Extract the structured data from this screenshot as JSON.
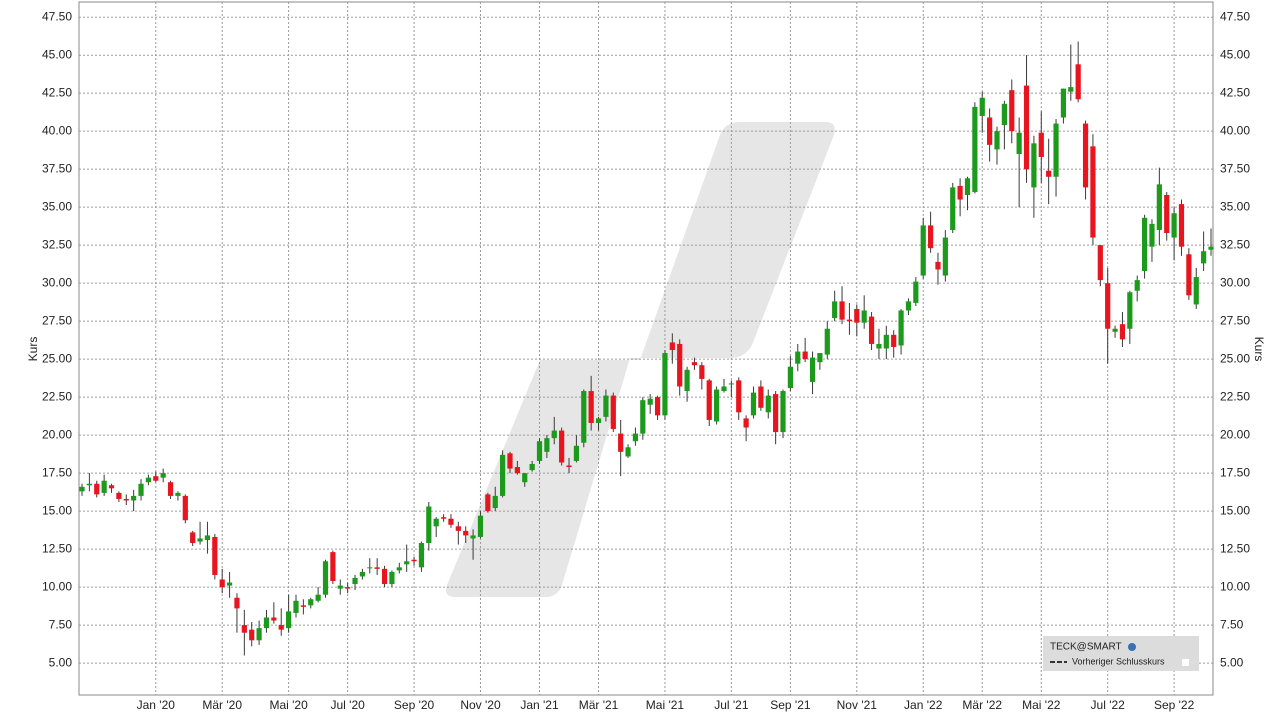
{
  "chart_data": {
    "type": "candlestick",
    "ylabel": "Kurs",
    "y2label": "Kurs",
    "legend_title": "TECK@SMART",
    "legend_entry": "Vorheriger Schlusskurs",
    "up_color": "#1c9a1c",
    "down_color": "#e8141e",
    "grid": true,
    "ylim": [
      2.9,
      48.5
    ],
    "yticks": [
      {
        "value": 5,
        "label": "5.00"
      },
      {
        "value": 7.5,
        "label": "7.50"
      },
      {
        "value": 10,
        "label": "10.00"
      },
      {
        "value": 12.5,
        "label": "12.50"
      },
      {
        "value": 15,
        "label": "15.00"
      },
      {
        "value": 17.5,
        "label": "17.50"
      },
      {
        "value": 20,
        "label": "20.00"
      },
      {
        "value": 22.5,
        "label": "22.50"
      },
      {
        "value": 25,
        "label": "25.00"
      },
      {
        "value": 27.5,
        "label": "27.50"
      },
      {
        "value": 30,
        "label": "30.00"
      },
      {
        "value": 32.5,
        "label": "32.50"
      },
      {
        "value": 35,
        "label": "35.00"
      },
      {
        "value": 37.5,
        "label": "37.50"
      },
      {
        "value": 40,
        "label": "40.00"
      },
      {
        "value": 42.5,
        "label": "42.50"
      },
      {
        "value": 45,
        "label": "45.00"
      },
      {
        "value": 47.5,
        "label": "47.50"
      }
    ],
    "categories": [
      null,
      null,
      null,
      null,
      null,
      null,
      null,
      null,
      null,
      null,
      "Jan '20",
      null,
      null,
      null,
      null,
      null,
      null,
      null,
      null,
      "Mär '20",
      null,
      null,
      null,
      null,
      null,
      null,
      null,
      null,
      "Mai '20",
      null,
      null,
      null,
      null,
      null,
      null,
      null,
      "Jul '20",
      null,
      null,
      null,
      null,
      null,
      null,
      null,
      null,
      "Sep '20",
      null,
      null,
      null,
      null,
      null,
      null,
      null,
      null,
      "Nov '20",
      null,
      null,
      null,
      null,
      null,
      null,
      null,
      "Jan '21",
      null,
      null,
      null,
      null,
      null,
      null,
      null,
      "Mär '21",
      null,
      null,
      null,
      null,
      null,
      null,
      null,
      null,
      "Mai '21",
      null,
      null,
      null,
      null,
      null,
      null,
      null,
      null,
      "Jul '21",
      null,
      null,
      null,
      null,
      null,
      null,
      null,
      "Sep '21",
      null,
      null,
      null,
      null,
      null,
      null,
      null,
      null,
      "Nov '21",
      null,
      null,
      null,
      null,
      null,
      null,
      null,
      null,
      "Jan '22",
      null,
      null,
      null,
      null,
      null,
      null,
      null,
      "Mär '22",
      null,
      null,
      null,
      null,
      null,
      null,
      null,
      "Mai '22",
      null,
      null,
      null,
      null,
      null,
      null,
      null,
      null,
      "Jul '22",
      null,
      null,
      null,
      null,
      null,
      null,
      null,
      null,
      "Sep '22",
      null,
      null,
      null,
      null,
      null
    ],
    "open": [
      16.3,
      16.7,
      16.8,
      16.2,
      16.7,
      16.2,
      15.8,
      15.7,
      16.0,
      16.9,
      17.3,
      17.2,
      16.9,
      16.0,
      16.0,
      13.6,
      13.0,
      13.1,
      13.3,
      10.5,
      10.1,
      9.3,
      7.5,
      7.2,
      6.5,
      7.3,
      8.0,
      7.5,
      7.3,
      8.3,
      8.8,
      8.8,
      9.1,
      9.5,
      12.3,
      9.9,
      10.0,
      10.2,
      10.7,
      11.3,
      11.3,
      11.2,
      10.2,
      11.1,
      11.5,
      11.8,
      11.3,
      12.9,
      14.0,
      14.6,
      14.5,
      14.0,
      13.7,
      13.2,
      13.3,
      16.1,
      15.2,
      16.0,
      18.8,
      17.9,
      16.9,
      17.7,
      18.3,
      18.9,
      19.8,
      20.3,
      18.0,
      18.3,
      19.5,
      22.9,
      20.8,
      21.2,
      22.6,
      20.1,
      18.6,
      19.6,
      20.1,
      22.0,
      22.5,
      21.3,
      26.1,
      26.0,
      22.9,
      24.8,
      24.6,
      23.6,
      20.9,
      22.9,
      23.4,
      23.6,
      21.1,
      21.3,
      23.2,
      21.5,
      22.7,
      20.2,
      23.1,
      24.7,
      25.5,
      23.5,
      24.8,
      25.3,
      27.7,
      28.8,
      27.6,
      28.3,
      27.4,
      27.8,
      25.7,
      25.7,
      26.6,
      25.9,
      28.2,
      28.7,
      30.5,
      33.8,
      31.4,
      30.5,
      33.5,
      36.4,
      35.8,
      36.0,
      41.0,
      40.9,
      38.8,
      40.4,
      42.7,
      38.5,
      43.0,
      36.3,
      39.9,
      37.4,
      37.0,
      40.9,
      42.6,
      44.4,
      40.5,
      39.0,
      32.5,
      30.0,
      26.8,
      27.3,
      27.0,
      29.5,
      30.8,
      32.4,
      33.5,
      35.8,
      33.0,
      35.2,
      31.9,
      28.6,
      31.3,
      32.2
    ],
    "high": [
      16.8,
      17.5,
      17.0,
      17.4,
      16.8,
      16.3,
      16.1,
      16.4,
      17.1,
      17.4,
      17.6,
      17.8,
      17.0,
      16.3,
      16.1,
      13.7,
      14.3,
      14.3,
      13.5,
      11.2,
      11.0,
      9.6,
      8.5,
      7.7,
      7.8,
      8.5,
      9.0,
      8.6,
      9.5,
      9.5,
      9.2,
      9.3,
      10.0,
      11.8,
      12.4,
      10.5,
      10.3,
      10.8,
      11.2,
      11.9,
      11.9,
      11.4,
      11.1,
      11.6,
      12.8,
      12.0,
      13.0,
      15.6,
      14.6,
      14.8,
      14.8,
      14.3,
      14.0,
      13.8,
      15.0,
      16.2,
      16.6,
      19.0,
      18.9,
      18.3,
      17.5,
      18.3,
      19.8,
      20.0,
      21.2,
      20.5,
      18.5,
      20.0,
      23.0,
      23.9,
      21.2,
      23.0,
      22.8,
      21.0,
      19.4,
      20.5,
      22.5,
      22.7,
      22.6,
      25.6,
      26.7,
      26.3,
      24.5,
      25.1,
      24.8,
      23.7,
      23.2,
      23.7,
      23.6,
      23.8,
      21.3,
      23.2,
      23.6,
      23.0,
      22.9,
      23.0,
      25.2,
      26.0,
      26.4,
      25.5,
      25.4,
      27.5,
      29.5,
      29.8,
      28.7,
      28.6,
      29.2,
      28.1,
      27.0,
      27.2,
      26.9,
      28.3,
      29.0,
      30.4,
      34.3,
      34.7,
      32.0,
      33.5,
      36.6,
      36.9,
      37.0,
      41.9,
      42.6,
      41.5,
      40.3,
      42.0,
      43.4,
      40.9,
      45.0,
      39.7,
      41.3,
      39.5,
      40.8,
      42.8,
      45.7,
      45.9,
      40.7,
      39.8,
      32.5,
      31.0,
      27.2,
      28.1,
      29.5,
      30.5,
      34.5,
      34.2,
      37.6,
      36.0,
      35.0,
      35.5,
      32.3,
      31.0,
      33.4,
      33.6
    ],
    "low": [
      16.0,
      16.3,
      15.9,
      16.0,
      16.2,
      15.6,
      15.4,
      15.0,
      15.7,
      16.7,
      16.9,
      16.9,
      15.8,
      15.7,
      14.2,
      12.7,
      12.8,
      12.2,
      10.5,
      9.6,
      9.3,
      7.0,
      5.5,
      6.1,
      6.2,
      7.0,
      7.6,
      6.8,
      7.0,
      8.0,
      8.2,
      8.6,
      9.0,
      9.3,
      10.2,
      9.5,
      9.6,
      9.8,
      10.5,
      10.9,
      10.8,
      10.0,
      10.0,
      10.9,
      11.0,
      11.4,
      11.0,
      12.4,
      13.3,
      14.3,
      13.9,
      12.8,
      12.9,
      11.8,
      13.2,
      14.9,
      15.0,
      15.9,
      17.5,
      17.4,
      16.6,
      17.6,
      18.1,
      18.5,
      19.4,
      18.0,
      17.5,
      18.2,
      19.2,
      20.3,
      20.3,
      20.9,
      20.2,
      17.3,
      18.5,
      19.3,
      19.7,
      21.4,
      21.0,
      21.0,
      24.7,
      22.6,
      22.2,
      24.3,
      23.0,
      20.6,
      20.7,
      22.8,
      22.5,
      21.0,
      19.6,
      21.1,
      21.6,
      21.1,
      19.4,
      19.8,
      22.9,
      24.2,
      24.8,
      22.7,
      24.3,
      25.0,
      27.5,
      27.3,
      26.6,
      26.5,
      27.0,
      25.6,
      25.0,
      25.0,
      25.1,
      25.3,
      27.9,
      28.5,
      30.3,
      32.0,
      29.9,
      30.1,
      33.3,
      34.4,
      34.8,
      35.9,
      39.9,
      38.0,
      37.8,
      38.8,
      39.2,
      35.0,
      36.6,
      34.3,
      36.6,
      35.2,
      35.7,
      40.5,
      42.0,
      41.9,
      35.5,
      32.5,
      29.8,
      24.7,
      26.4,
      25.8,
      26.0,
      28.8,
      30.3,
      31.4,
      32.5,
      32.8,
      31.5,
      31.8,
      28.9,
      28.3,
      30.8,
      31.8
    ],
    "close": [
      16.6,
      16.8,
      16.1,
      17.0,
      16.5,
      15.8,
      15.7,
      16.0,
      16.8,
      17.2,
      17.0,
      17.5,
      16.0,
      16.2,
      14.4,
      12.9,
      13.2,
      13.4,
      10.8,
      10.0,
      10.3,
      8.6,
      7.0,
      6.5,
      7.3,
      8.0,
      7.8,
      7.2,
      8.4,
      9.1,
      8.7,
      9.2,
      9.5,
      11.7,
      10.4,
      10.1,
      9.9,
      10.6,
      11.0,
      11.3,
      11.2,
      10.2,
      11.0,
      11.3,
      11.7,
      11.7,
      12.9,
      15.3,
      14.5,
      14.5,
      14.1,
      13.7,
      13.4,
      13.4,
      14.7,
      15.0,
      16.0,
      18.7,
      17.8,
      17.5,
      17.5,
      18.1,
      19.6,
      19.8,
      20.3,
      18.2,
      17.9,
      19.3,
      22.9,
      20.8,
      21.1,
      22.6,
      20.4,
      18.9,
      19.2,
      20.1,
      22.3,
      22.4,
      21.3,
      25.4,
      25.6,
      23.2,
      24.3,
      24.6,
      23.7,
      21.0,
      23.0,
      23.2,
      23.4,
      21.5,
      20.5,
      22.8,
      21.8,
      22.6,
      20.2,
      22.9,
      24.5,
      25.5,
      25.0,
      25.1,
      25.4,
      27.0,
      28.8,
      27.6,
      27.5,
      27.4,
      28.2,
      26.0,
      26.0,
      26.6,
      25.8,
      28.2,
      28.8,
      30.1,
      33.8,
      32.3,
      30.9,
      33.0,
      36.3,
      35.5,
      36.9,
      41.6,
      42.2,
      39.1,
      40.0,
      41.8,
      40.0,
      39.9,
      37.5,
      39.2,
      38.3,
      37.0,
      40.5,
      42.8,
      42.9,
      42.1,
      36.3,
      33.0,
      30.2,
      27.0,
      27.0,
      26.3,
      29.4,
      30.2,
      34.3,
      33.9,
      36.5,
      33.3,
      34.6,
      32.4,
      29.2,
      30.4,
      32.1,
      32.4
    ]
  }
}
